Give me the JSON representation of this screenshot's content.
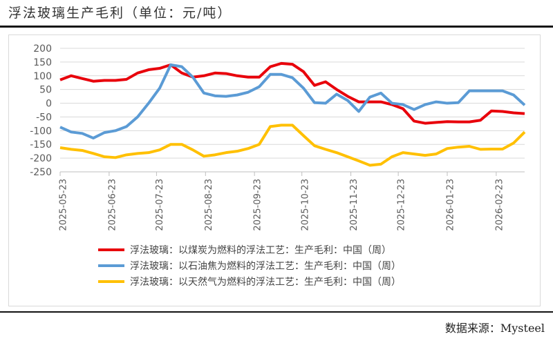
{
  "title": "浮法玻璃生产毛利（单位：元/吨）",
  "source": "数据来源：Mysteel",
  "chart_data": {
    "type": "line",
    "title": "",
    "xlabel": "",
    "ylabel": "",
    "ylim": [
      -250,
      200
    ],
    "yticks": [
      "200",
      "150",
      "100",
      "50",
      "0",
      "-50",
      "-100",
      "-150",
      "-200",
      "-250"
    ],
    "xticks": [
      "2025-05-23",
      "2025-06-23",
      "2025-07-23",
      "2025-08-23",
      "2025-09-23",
      "2025-10-23",
      "2025-11-23",
      "2025-12-23",
      "2026-01-23",
      "2026-02-23"
    ],
    "grid": true,
    "legend_position": "bottom",
    "x_start": "2025-05-23",
    "x_frequency": "weekly",
    "series": [
      {
        "name": "浮法玻璃：以煤炭为燃料的浮法工艺：生产毛利：中国（周）",
        "color": "#e8000b",
        "values": [
          85,
          100,
          90,
          80,
          83,
          83,
          87,
          110,
          122,
          127,
          140,
          110,
          95,
          100,
          110,
          108,
          100,
          95,
          95,
          133,
          145,
          142,
          115,
          65,
          78,
          50,
          25,
          5,
          5,
          5,
          -5,
          -20,
          -65,
          -73,
          -70,
          -67,
          -68,
          -68,
          -62,
          -28,
          -30,
          -35,
          -38
        ]
      },
      {
        "name": "浮法玻璃：以石油焦为燃料的浮法工艺：生产毛利：中国（周）",
        "color": "#5b9bd5",
        "values": [
          -87,
          -105,
          -110,
          -127,
          -107,
          -100,
          -85,
          -50,
          0,
          55,
          140,
          133,
          95,
          37,
          27,
          25,
          30,
          40,
          60,
          105,
          105,
          93,
          55,
          2,
          0,
          33,
          10,
          -30,
          22,
          37,
          0,
          -5,
          -23,
          -5,
          5,
          0,
          2,
          45,
          45,
          45,
          45,
          30,
          -7
        ]
      },
      {
        "name": "浮法玻璃：以天然气为燃料的浮法工艺：生产毛利：中国（周）",
        "color": "#ffc000",
        "values": [
          -162,
          -168,
          -172,
          -183,
          -195,
          -198,
          -188,
          -183,
          -180,
          -170,
          -150,
          -150,
          -170,
          -193,
          -188,
          -180,
          -175,
          -165,
          -150,
          -85,
          -80,
          -80,
          -118,
          -155,
          -168,
          -180,
          -195,
          -210,
          -226,
          -222,
          -195,
          -180,
          -185,
          -190,
          -185,
          -165,
          -160,
          -157,
          -168,
          -167,
          -167,
          -145,
          -105
        ]
      }
    ]
  }
}
